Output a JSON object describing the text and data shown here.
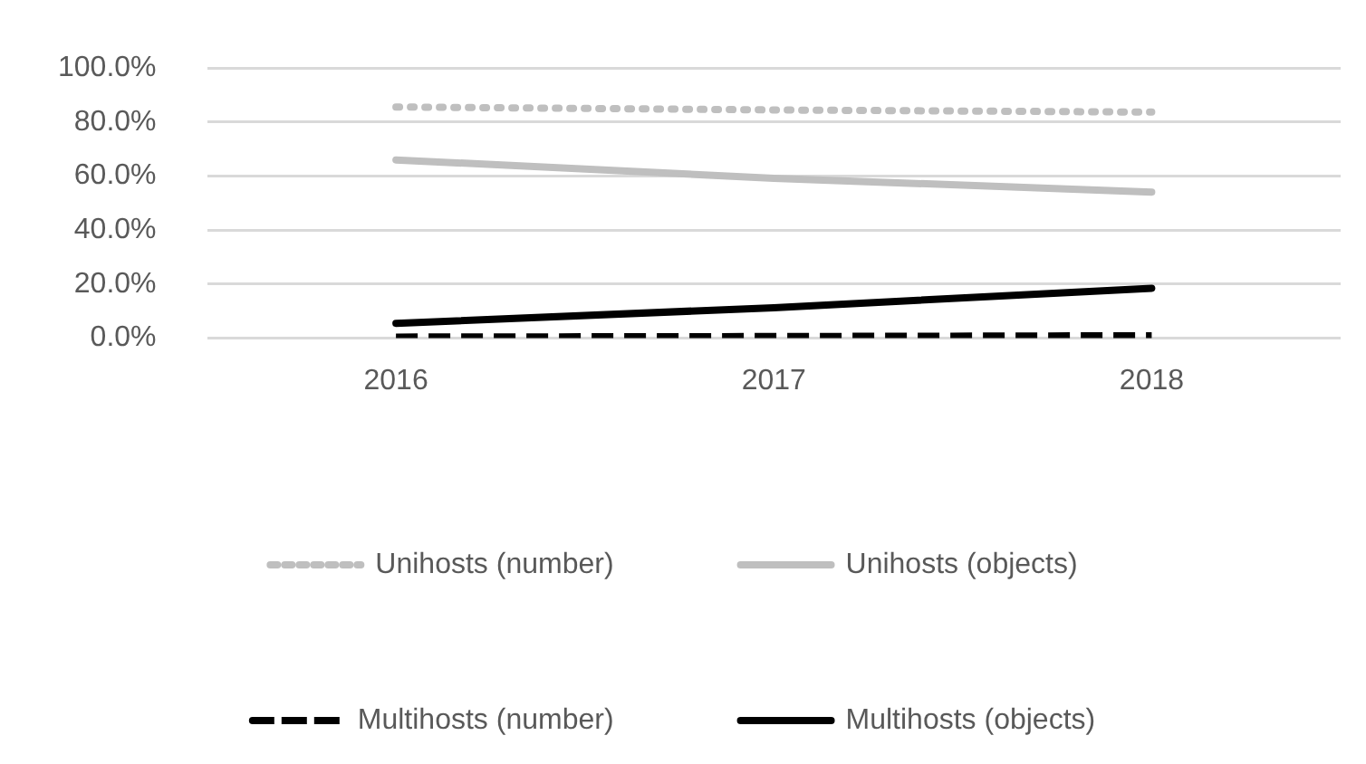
{
  "chart_data": {
    "type": "line",
    "categories": [
      "2016",
      "2017",
      "2018"
    ],
    "series": [
      {
        "name": "Unihosts (number)",
        "color": "#bfbfbf",
        "line_style": "dotted",
        "values": [
          85.6,
          84.5,
          83.7
        ]
      },
      {
        "name": "Unihosts (objects)",
        "color": "#bfbfbf",
        "line_style": "solid",
        "values": [
          66.0,
          59.2,
          54.1
        ]
      },
      {
        "name": "Multihosts (number)",
        "color": "#000000",
        "line_style": "dashed",
        "values": [
          0.4,
          0.6,
          0.9
        ]
      },
      {
        "name": "Multihosts (objects)",
        "color": "#000000",
        "line_style": "solid",
        "values": [
          5.5,
          11.3,
          18.5
        ]
      }
    ],
    "ylim": [
      0,
      100
    ],
    "yticks": [
      {
        "value": 0,
        "label": "0.0%"
      },
      {
        "value": 20,
        "label": "20.0%"
      },
      {
        "value": 40,
        "label": "40.0%"
      },
      {
        "value": 60,
        "label": "60.0%"
      },
      {
        "value": 80,
        "label": "80.0%"
      },
      {
        "value": 100,
        "label": "100.0%"
      }
    ],
    "grid": "y",
    "legend": "bottom",
    "marker": "none"
  }
}
